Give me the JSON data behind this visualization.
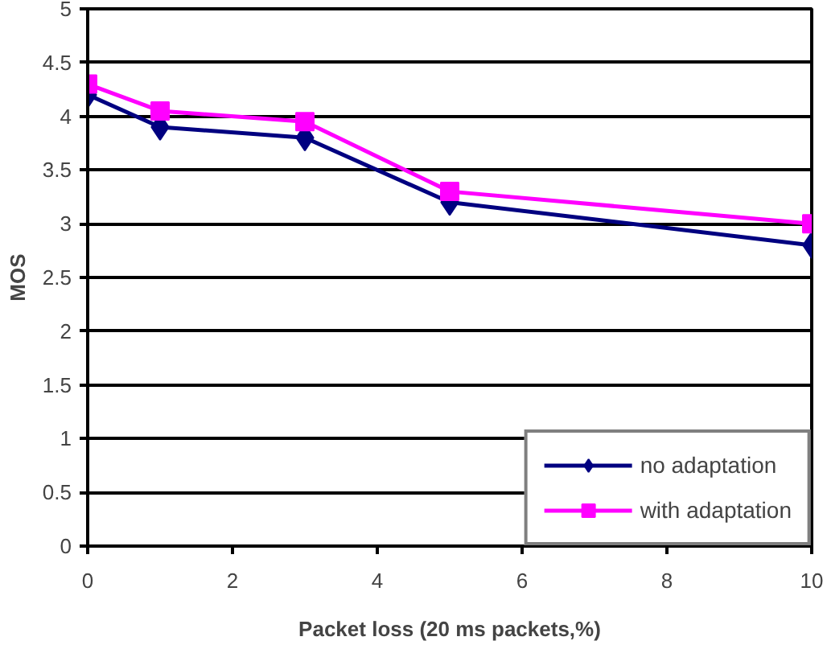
{
  "chart_data": {
    "type": "line",
    "xlabel": "Packet loss (20 ms packets,%)",
    "ylabel": "MOS",
    "x": [
      0,
      1,
      3,
      5,
      10
    ],
    "series": [
      {
        "name": "no adaptation",
        "color": "#000080",
        "marker": "diamond",
        "values": [
          4.2,
          3.9,
          3.8,
          3.2,
          2.8
        ]
      },
      {
        "name": "with adaptation",
        "color": "#ff00ff",
        "marker": "square",
        "values": [
          4.3,
          4.05,
          3.95,
          3.3,
          3.0
        ]
      }
    ],
    "xlim": [
      0,
      10
    ],
    "xticks": [
      0,
      2,
      4,
      6,
      8,
      10
    ],
    "ylim": [
      0,
      5
    ],
    "yticks": [
      0,
      {
        "value": 0.5,
        "label": "0.5"
      },
      1,
      {
        "value": 1.5,
        "label": "1.5"
      },
      2,
      {
        "value": 2.5,
        "label": "2.5"
      },
      3,
      {
        "value": 3.5,
        "label": "3.5"
      },
      4,
      {
        "value": 4.5,
        "label": "4.5"
      },
      5
    ],
    "grid": "y",
    "legend": "bottom right"
  }
}
